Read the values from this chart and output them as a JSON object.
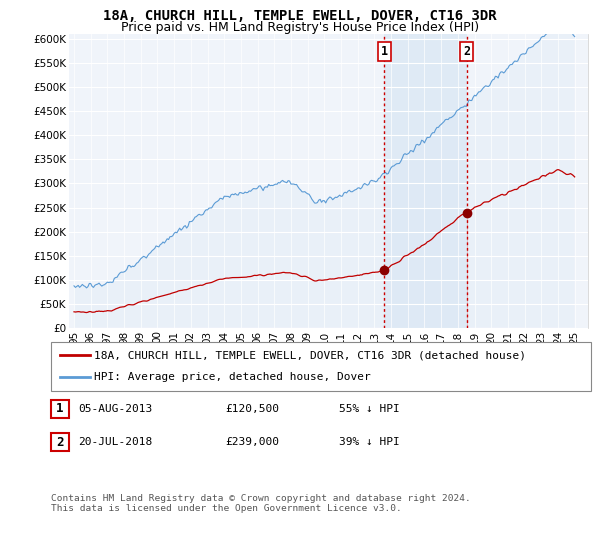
{
  "title": "18A, CHURCH HILL, TEMPLE EWELL, DOVER, CT16 3DR",
  "subtitle": "Price paid vs. HM Land Registry's House Price Index (HPI)",
  "ylabel_ticks": [
    "£0",
    "£50K",
    "£100K",
    "£150K",
    "£200K",
    "£250K",
    "£300K",
    "£350K",
    "£400K",
    "£450K",
    "£500K",
    "£550K",
    "£600K"
  ],
  "ytick_values": [
    0,
    50000,
    100000,
    150000,
    200000,
    250000,
    300000,
    350000,
    400000,
    450000,
    500000,
    550000,
    600000
  ],
  "ylim": [
    0,
    612000
  ],
  "xlim_start": 1994.7,
  "xlim_end": 2025.8,
  "xlabel_ticks": [
    "95",
    "96",
    "97",
    "98",
    "99",
    "00",
    "01",
    "02",
    "03",
    "04",
    "05",
    "06",
    "07",
    "08",
    "09",
    "10",
    "11",
    "12",
    "13",
    "14",
    "15",
    "16",
    "17",
    "18",
    "19",
    "20",
    "21",
    "22",
    "23",
    "24",
    "25"
  ],
  "xtick_positions": [
    1995,
    1996,
    1997,
    1998,
    1999,
    2000,
    2001,
    2002,
    2003,
    2004,
    2005,
    2006,
    2007,
    2008,
    2009,
    2010,
    2011,
    2012,
    2013,
    2014,
    2015,
    2016,
    2017,
    2018,
    2019,
    2020,
    2021,
    2022,
    2023,
    2024,
    2025
  ],
  "hpi_color": "#5b9bd5",
  "hpi_fill_color": "#dce9f5",
  "price_color": "#c00000",
  "marker_color": "#8b0000",
  "vline_color": "#cc0000",
  "background_color": "#f0f4fa",
  "grid_color": "#ffffff",
  "sale1_x": 2013.59,
  "sale1_y": 120500,
  "sale1_label": "1",
  "sale2_x": 2018.54,
  "sale2_y": 239000,
  "sale2_label": "2",
  "legend_label1": "18A, CHURCH HILL, TEMPLE EWELL, DOVER, CT16 3DR (detached house)",
  "legend_label2": "HPI: Average price, detached house, Dover",
  "table_row1": [
    "1",
    "05-AUG-2013",
    "£120,500",
    "55% ↓ HPI"
  ],
  "table_row2": [
    "2",
    "20-JUL-2018",
    "£239,000",
    "39% ↓ HPI"
  ],
  "footnote": "Contains HM Land Registry data © Crown copyright and database right 2024.\nThis data is licensed under the Open Government Licence v3.0.",
  "title_fontsize": 10,
  "subtitle_fontsize": 9,
  "tick_fontsize": 7.5,
  "legend_fontsize": 8,
  "table_fontsize": 8
}
